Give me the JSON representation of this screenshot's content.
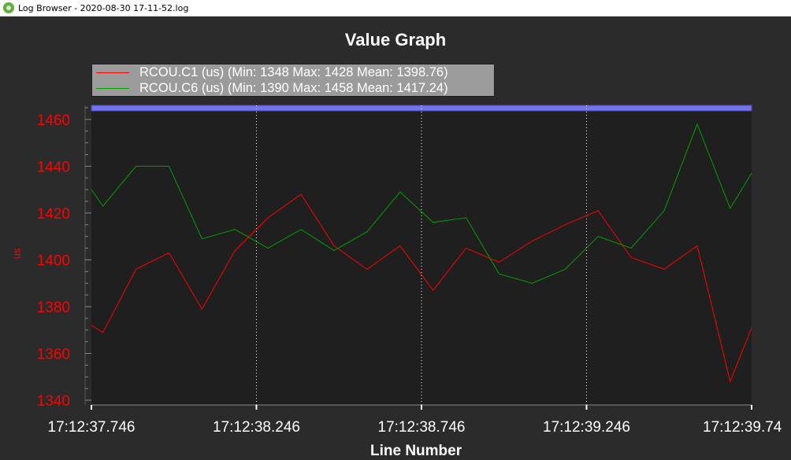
{
  "window": {
    "title": "Log Browser - 2020-08-30 17-11-52.log",
    "icon": "log-browser-app-icon"
  },
  "colors": {
    "background": "#2b2b2b",
    "plot_background": "#1f1f1f",
    "series1": "#ff0000",
    "series2": "#00a000",
    "scroll_band": "#7474ee",
    "legend_bg": "#9b9b9b",
    "axis_text": "#ff0000",
    "x_tick_text": "#ffffff"
  },
  "chart_data": {
    "type": "line",
    "title": "Value Graph",
    "xlabel": "Line Number",
    "ylabel": "us",
    "x_tick_labels": [
      "17:12:37.746",
      "17:12:38.246",
      "17:12:38.746",
      "17:12:39.246",
      "17:12:39.74"
    ],
    "y_ticks": [
      1340,
      1360,
      1380,
      1400,
      1420,
      1440,
      1460
    ],
    "ylim": [
      1338,
      1466
    ],
    "x_range": [
      0,
      20
    ],
    "grid": "vertical dotted at x ticks",
    "legend_position": "top-left",
    "series": [
      {
        "name": "RCOU.C1 (us) (Min: 1348 Max: 1428 Mean: 1398.76)",
        "x": [
          0,
          0.35,
          1.35,
          2.35,
          3.35,
          4.35,
          5.35,
          6.35,
          7.35,
          8.35,
          9.35,
          10.35,
          11.35,
          12.35,
          13.35,
          14.35,
          15.35,
          16.35,
          17.35,
          18.35,
          19.35,
          20
        ],
        "values": [
          1372,
          1369,
          1396,
          1403,
          1379,
          1404,
          1418,
          1428,
          1406,
          1396,
          1406,
          1387,
          1405,
          1399,
          1408,
          1415,
          1421,
          1401,
          1396,
          1406,
          1348,
          1371
        ]
      },
      {
        "name": "RCOU.C6 (us) (Min: 1390 Max: 1458 Mean: 1417.24)",
        "x": [
          0,
          0.35,
          1.35,
          2.35,
          3.35,
          4.35,
          5.35,
          6.35,
          7.35,
          8.35,
          9.35,
          10.35,
          11.35,
          12.35,
          13.35,
          14.35,
          15.35,
          16.35,
          17.35,
          18.35,
          19.35,
          20
        ],
        "values": [
          1430,
          1423,
          1440,
          1440,
          1409,
          1413,
          1405,
          1413,
          1404,
          1412,
          1429,
          1416,
          1418,
          1394,
          1390,
          1396,
          1410,
          1405,
          1421,
          1458,
          1422,
          1437
        ]
      }
    ]
  }
}
